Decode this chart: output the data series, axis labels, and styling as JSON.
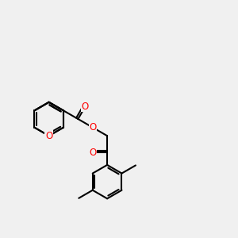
{
  "bg_color": "#f0f0f0",
  "bond_color": "#000000",
  "oxygen_color": "#ff0000",
  "line_width": 1.5,
  "font_size": 8.5,
  "figsize": [
    3.0,
    3.0
  ],
  "dpi": 100,
  "xlim": [
    0,
    10
  ],
  "ylim": [
    1,
    9
  ]
}
